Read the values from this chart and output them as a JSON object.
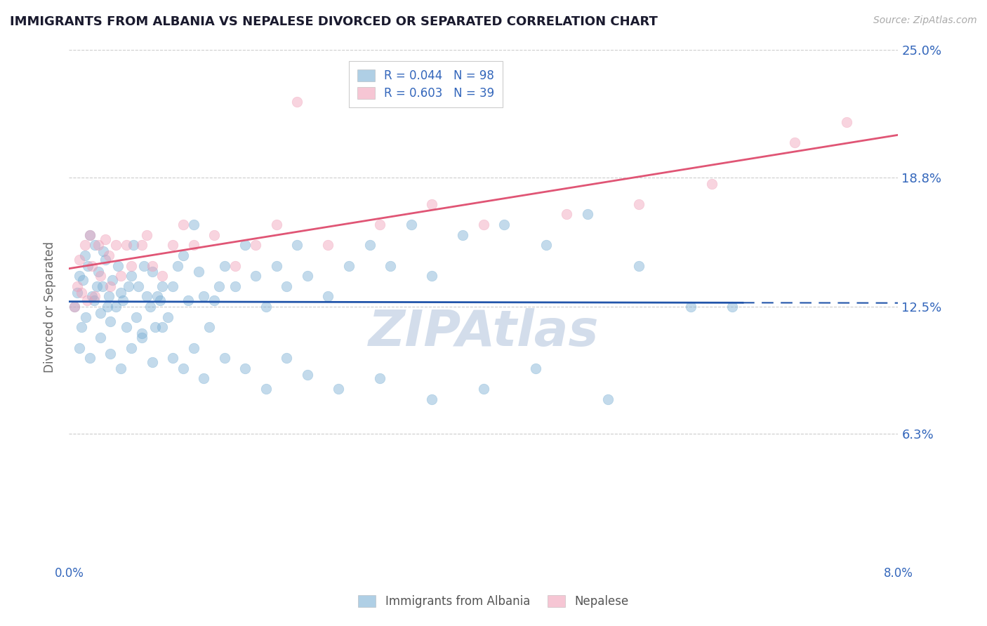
{
  "title": "IMMIGRANTS FROM ALBANIA VS NEPALESE DIVORCED OR SEPARATED CORRELATION CHART",
  "source_text": "Source: ZipAtlas.com",
  "ylabel": "Divorced or Separated",
  "xmin": 0.0,
  "xmax": 8.0,
  "ymin": 0.0,
  "ymax": 25.0,
  "yticks": [
    6.3,
    12.5,
    18.8,
    25.0
  ],
  "ytick_labels": [
    "6.3%",
    "12.5%",
    "18.8%",
    "25.0%"
  ],
  "albania_color": "#7aafd4",
  "nepalese_color": "#f0a0b8",
  "albania_line_color": "#2255aa",
  "nepalese_line_color": "#e05575",
  "albania_line_solid_end": 6.5,
  "watermark": "ZIPAtlas",
  "watermark_color": "#ccd8e8",
  "title_color": "#1a1a2e",
  "tick_label_color": "#3366bb",
  "background_color": "#ffffff",
  "legend_label_1": "R = 0.044   N = 98",
  "legend_label_2": "R = 0.603   N = 39",
  "bottom_legend_label_1": "Immigrants from Albania",
  "bottom_legend_label_2": "Nepalese",
  "albania_scatter_x": [
    0.05,
    0.08,
    0.1,
    0.12,
    0.13,
    0.15,
    0.16,
    0.18,
    0.2,
    0.22,
    0.24,
    0.25,
    0.27,
    0.28,
    0.3,
    0.32,
    0.33,
    0.35,
    0.37,
    0.38,
    0.4,
    0.42,
    0.45,
    0.47,
    0.5,
    0.52,
    0.55,
    0.57,
    0.6,
    0.62,
    0.65,
    0.67,
    0.7,
    0.72,
    0.75,
    0.78,
    0.8,
    0.83,
    0.85,
    0.88,
    0.9,
    0.95,
    1.0,
    1.05,
    1.1,
    1.15,
    1.2,
    1.25,
    1.3,
    1.35,
    1.4,
    1.45,
    1.5,
    1.6,
    1.7,
    1.8,
    1.9,
    2.0,
    2.1,
    2.2,
    2.3,
    2.5,
    2.7,
    2.9,
    3.1,
    3.3,
    3.5,
    3.8,
    4.2,
    4.6,
    5.0,
    5.5,
    6.0,
    6.4,
    0.1,
    0.2,
    0.3,
    0.4,
    0.5,
    0.6,
    0.7,
    0.8,
    0.9,
    1.0,
    1.1,
    1.2,
    1.3,
    1.5,
    1.7,
    1.9,
    2.1,
    2.3,
    2.6,
    3.0,
    3.5,
    4.0,
    4.5,
    5.2
  ],
  "albania_scatter_y": [
    12.5,
    13.2,
    14.0,
    11.5,
    13.8,
    15.0,
    12.0,
    14.5,
    16.0,
    13.0,
    12.8,
    15.5,
    13.5,
    14.2,
    12.2,
    13.5,
    15.2,
    14.8,
    12.5,
    13.0,
    11.8,
    13.8,
    12.5,
    14.5,
    13.2,
    12.8,
    11.5,
    13.5,
    14.0,
    15.5,
    12.0,
    13.5,
    11.2,
    14.5,
    13.0,
    12.5,
    14.2,
    11.5,
    13.0,
    12.8,
    13.5,
    12.0,
    13.5,
    14.5,
    15.0,
    12.8,
    16.5,
    14.2,
    13.0,
    11.5,
    12.8,
    13.5,
    14.5,
    13.5,
    15.5,
    14.0,
    12.5,
    14.5,
    13.5,
    15.5,
    14.0,
    13.0,
    14.5,
    15.5,
    14.5,
    16.5,
    14.0,
    16.0,
    16.5,
    15.5,
    17.0,
    14.5,
    12.5,
    12.5,
    10.5,
    10.0,
    11.0,
    10.2,
    9.5,
    10.5,
    11.0,
    9.8,
    11.5,
    10.0,
    9.5,
    10.5,
    9.0,
    10.0,
    9.5,
    8.5,
    10.0,
    9.2,
    8.5,
    9.0,
    8.0,
    8.5,
    9.5,
    8.0
  ],
  "nepalese_scatter_x": [
    0.05,
    0.08,
    0.1,
    0.12,
    0.15,
    0.17,
    0.2,
    0.22,
    0.25,
    0.28,
    0.3,
    0.35,
    0.38,
    0.4,
    0.45,
    0.5,
    0.55,
    0.6,
    0.7,
    0.75,
    0.8,
    0.9,
    1.0,
    1.1,
    1.2,
    1.4,
    1.6,
    1.8,
    2.0,
    2.2,
    2.5,
    3.0,
    3.5,
    4.0,
    4.8,
    5.5,
    6.2,
    7.0,
    7.5
  ],
  "nepalese_scatter_y": [
    12.5,
    13.5,
    14.8,
    13.2,
    15.5,
    12.8,
    16.0,
    14.5,
    13.0,
    15.5,
    14.0,
    15.8,
    15.0,
    13.5,
    15.5,
    14.0,
    15.5,
    14.5,
    15.5,
    16.0,
    14.5,
    14.0,
    15.5,
    16.5,
    15.5,
    16.0,
    14.5,
    15.5,
    16.5,
    22.5,
    15.5,
    16.5,
    17.5,
    16.5,
    17.0,
    17.5,
    18.5,
    20.5,
    21.5
  ]
}
